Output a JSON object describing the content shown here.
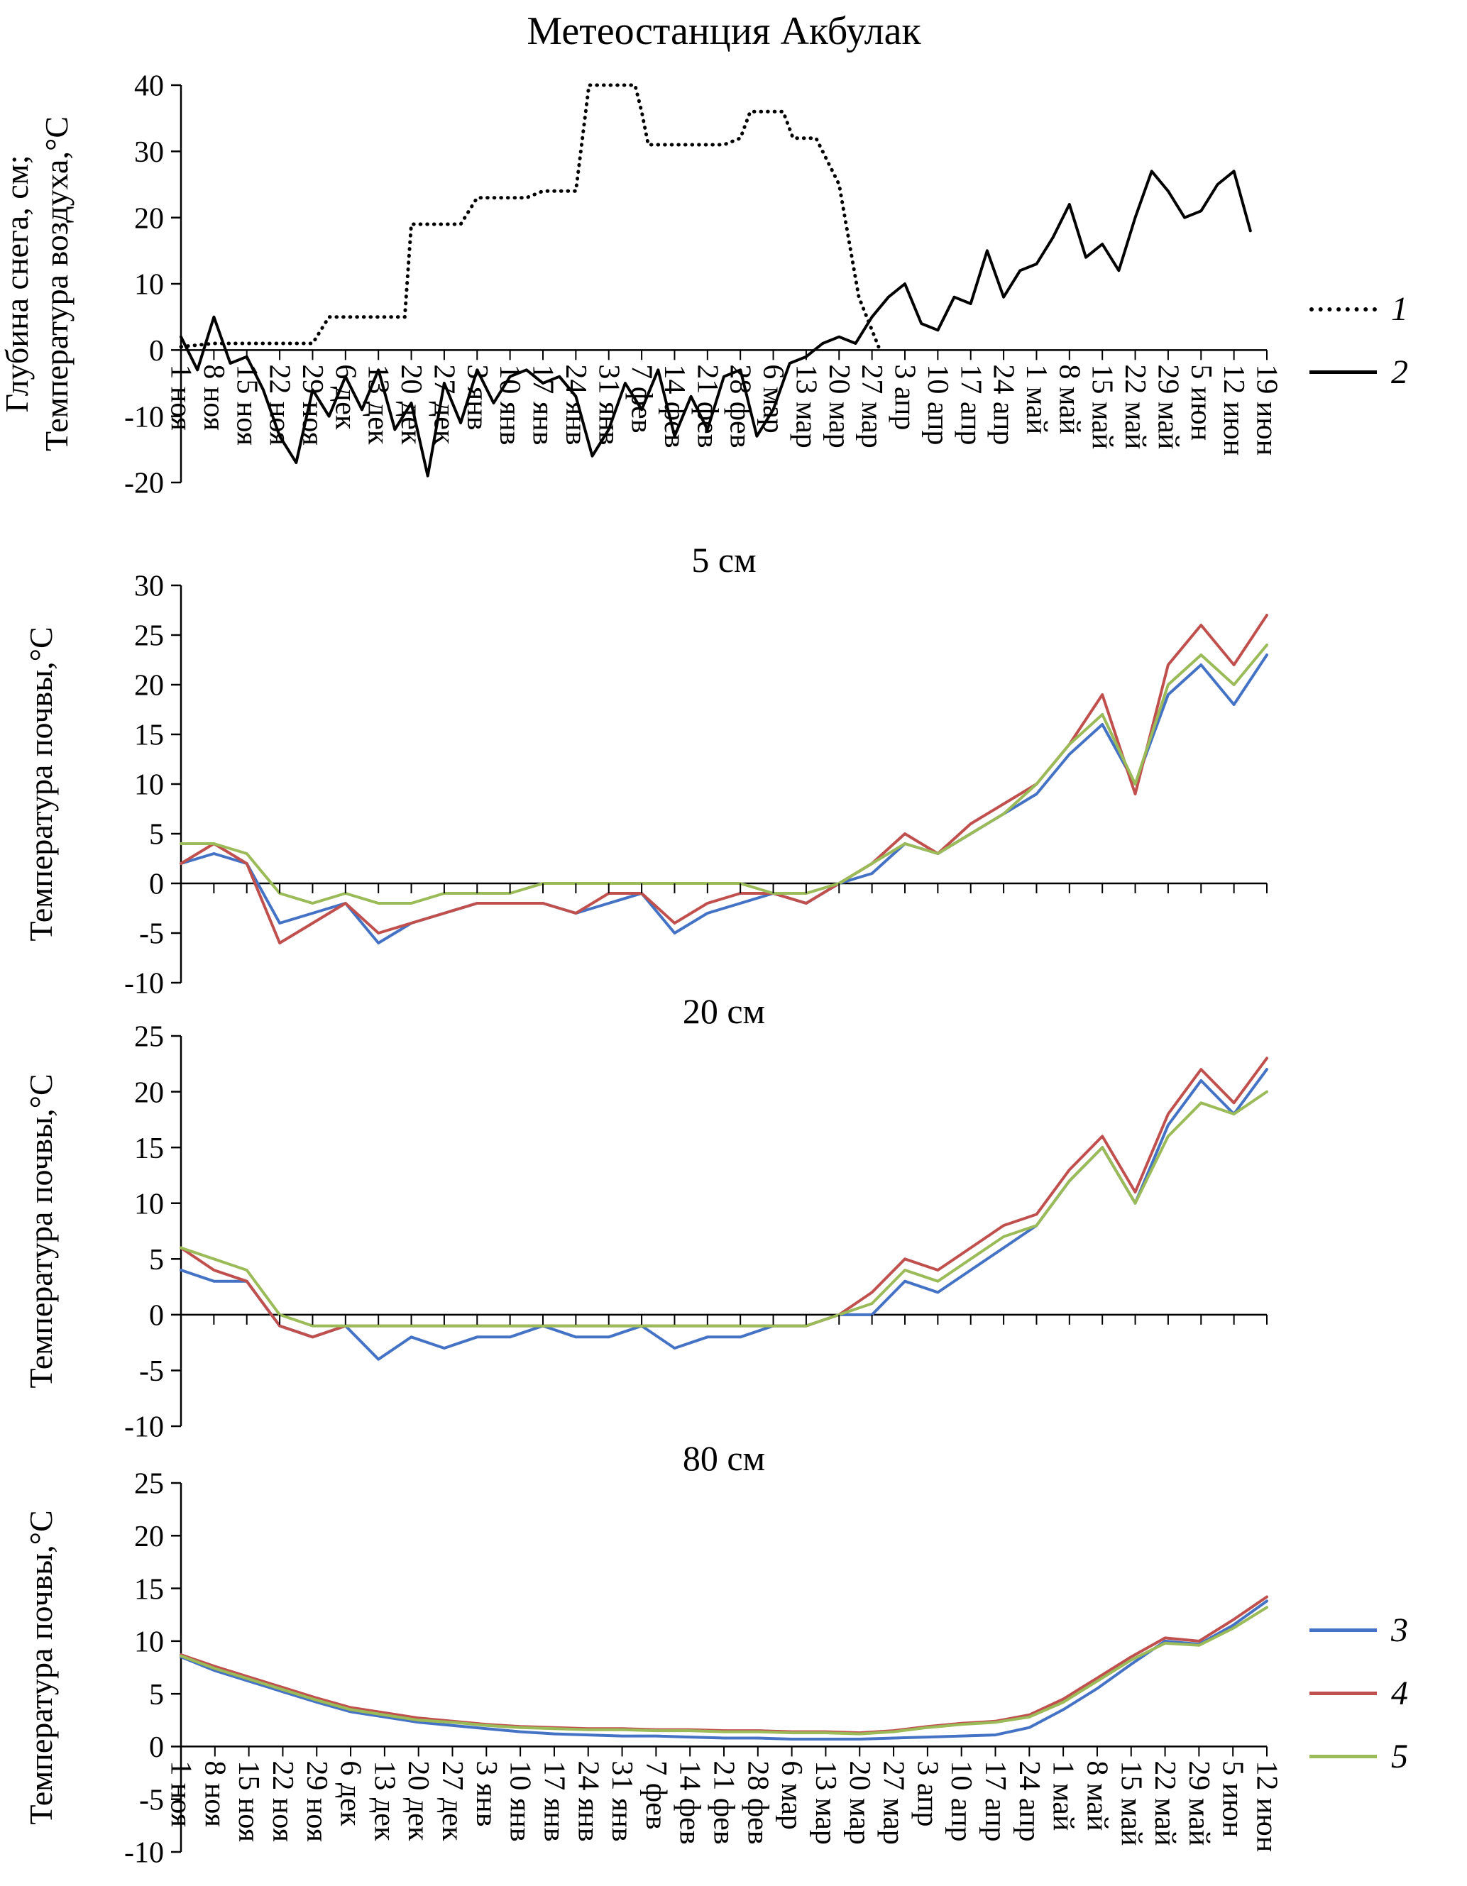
{
  "title": "Метеостанция Акбулак",
  "colors": {
    "blue": "#4472C4",
    "red": "#C0504D",
    "green": "#9BBB59",
    "black": "#000000"
  },
  "chart_data": [
    {
      "type": "line",
      "title": "Метеостанция Акбулак",
      "ylabel_lines": [
        "Глубина снега, см;",
        "Температура воздуха,°C"
      ],
      "ylim": [
        -20,
        40
      ],
      "ystep": 10,
      "grid": false,
      "legend_position": "right",
      "legend": [
        "1",
        "2"
      ],
      "categories": [
        "1 ноя",
        "8 ноя",
        "15 ноя",
        "22 ноя",
        "29 ноя",
        "6 дек",
        "13 дек",
        "20 дек",
        "27 дек",
        "3 янв",
        "10 янв",
        "17 янв",
        "24 янв",
        "31 янв",
        "7 фев",
        "14 фев",
        "21 фев",
        "28 фев",
        "6 мар",
        "13 мар",
        "20 мар",
        "27 мар",
        "3 апр",
        "10 апр",
        "17 апр",
        "24 апр",
        "1 май",
        "8 май",
        "15 май",
        "22 май",
        "29 май",
        "5 июн",
        "12 июн",
        "19 июн"
      ],
      "series": [
        {
          "name": "1",
          "color": "#000000",
          "style": "dotted",
          "x": [
            0,
            1,
            2,
            3,
            4,
            4.5,
            5,
            6.8,
            7,
            8.5,
            9,
            10.5,
            11,
            12,
            12.4,
            13.8,
            14,
            14.2,
            15,
            16.5,
            17,
            17.3,
            18.3,
            18.6,
            19.3,
            20,
            20.6,
            21.2
          ],
          "values": [
            0.5,
            1,
            1,
            1,
            1,
            5,
            5,
            5,
            19,
            19,
            23,
            23,
            24,
            24,
            40,
            40,
            36,
            31,
            31,
            31,
            32,
            36,
            36,
            32,
            32,
            25,
            8,
            0.5
          ]
        },
        {
          "name": "2",
          "color": "#000000",
          "style": "solid",
          "x_step": 0.5,
          "values": [
            2,
            -3,
            5,
            -2,
            -1,
            -6,
            -13,
            -17,
            -6,
            -10,
            -4,
            -9,
            -3,
            -12,
            -8,
            -19,
            -5,
            -11,
            -3,
            -8,
            -4,
            -3,
            -5,
            -4,
            -7,
            -16,
            -12,
            -5,
            -9,
            -3,
            -13,
            -7,
            -12,
            -4,
            -3,
            -13,
            -9,
            -2,
            -1,
            1,
            2,
            1,
            5,
            8,
            10,
            4,
            3,
            8,
            7,
            15,
            8,
            12,
            13,
            17,
            22,
            14,
            16,
            12,
            20,
            27,
            24,
            20,
            21,
            25,
            27,
            18
          ]
        }
      ]
    },
    {
      "type": "line",
      "subtitle": "5 см",
      "ylabel": "Температура почвы,°C",
      "ylim": [
        -10,
        30
      ],
      "ystep": 5,
      "grid": false,
      "n_ticks": 34,
      "series": [
        {
          "name": "3",
          "color": "#4472C4",
          "style": "solid",
          "values": [
            2,
            3,
            2,
            -4,
            -3,
            -2,
            -6,
            -4,
            -3,
            -2,
            -2,
            -2,
            -3,
            -2,
            -1,
            -5,
            -3,
            -2,
            -1,
            -2,
            0,
            1,
            4,
            3,
            5,
            7,
            9,
            13,
            16,
            10,
            19,
            22,
            18,
            23
          ]
        },
        {
          "name": "4",
          "color": "#C0504D",
          "style": "solid",
          "values": [
            2,
            4,
            2,
            -6,
            -4,
            -2,
            -5,
            -4,
            -3,
            -2,
            -2,
            -2,
            -3,
            -1,
            -1,
            -4,
            -2,
            -1,
            -1,
            -2,
            0,
            2,
            5,
            3,
            6,
            8,
            10,
            14,
            19,
            9,
            22,
            26,
            22,
            27
          ]
        },
        {
          "name": "5",
          "color": "#9BBB59",
          "style": "solid",
          "values": [
            4,
            4,
            3,
            -1,
            -2,
            -1,
            -2,
            -2,
            -1,
            -1,
            -1,
            0,
            0,
            0,
            0,
            0,
            0,
            0,
            -1,
            -1,
            0,
            2,
            4,
            3,
            5,
            7,
            10,
            14,
            17,
            10,
            20,
            23,
            20,
            24
          ]
        }
      ]
    },
    {
      "type": "line",
      "subtitle": "20 см",
      "ylabel": "Температура почвы,°C",
      "ylim": [
        -10,
        25
      ],
      "ystep": 5,
      "grid": false,
      "n_ticks": 34,
      "series": [
        {
          "name": "3",
          "color": "#4472C4",
          "style": "solid",
          "values": [
            4,
            3,
            3,
            -1,
            -2,
            -1,
            -4,
            -2,
            -3,
            -2,
            -2,
            -1,
            -2,
            -2,
            -1,
            -3,
            -2,
            -2,
            -1,
            -1,
            0,
            0,
            3,
            2,
            4,
            6,
            8,
            12,
            15,
            10,
            17,
            21,
            18,
            22
          ]
        },
        {
          "name": "4",
          "color": "#C0504D",
          "style": "solid",
          "values": [
            6,
            4,
            3,
            -1,
            -2,
            -1,
            -1,
            -1,
            -1,
            -1,
            -1,
            -1,
            -1,
            -1,
            -1,
            -1,
            -1,
            -1,
            -1,
            -1,
            0,
            2,
            5,
            4,
            6,
            8,
            9,
            13,
            16,
            11,
            18,
            22,
            19,
            23
          ]
        },
        {
          "name": "5",
          "color": "#9BBB59",
          "style": "solid",
          "values": [
            6,
            5,
            4,
            0,
            -1,
            -1,
            -1,
            -1,
            -1,
            -1,
            -1,
            -1,
            -1,
            -1,
            -1,
            -1,
            -1,
            -1,
            -1,
            -1,
            0,
            1,
            4,
            3,
            5,
            7,
            8,
            12,
            15,
            10,
            16,
            19,
            18,
            20
          ]
        }
      ]
    },
    {
      "type": "line",
      "subtitle": "80 см",
      "ylabel": "Температура почвы,°C",
      "ylim": [
        -10,
        25
      ],
      "ystep": 5,
      "grid": false,
      "legend_position": "right",
      "legend": [
        "3",
        "4",
        "5"
      ],
      "categories": [
        "1 ноя",
        "8 ноя",
        "15 ноя",
        "22 ноя",
        "29 ноя",
        "6 дек",
        "13 дек",
        "20 дек",
        "27 дек",
        "3 янв",
        "10 янв",
        "17 янв",
        "24 янв",
        "31 янв",
        "7 фев",
        "14 фев",
        "21 фев",
        "28 фев",
        "6 мар",
        "13 мар",
        "20 мар",
        "27 мар",
        "3 апр",
        "10 апр",
        "17 апр",
        "24 апр",
        "1 май",
        "8 май",
        "15 май",
        "22 май",
        "29 май",
        "5 июн",
        "12 июн"
      ],
      "series": [
        {
          "name": "3",
          "color": "#4472C4",
          "style": "solid",
          "values": [
            8.5,
            7.2,
            6.2,
            5.2,
            4.2,
            3.3,
            2.8,
            2.3,
            2,
            1.7,
            1.4,
            1.2,
            1.1,
            1,
            1,
            0.9,
            0.8,
            0.8,
            0.7,
            0.7,
            0.7,
            0.8,
            0.9,
            1,
            1.1,
            1.8,
            3.5,
            5.5,
            7.8,
            10,
            9.7,
            11.5,
            13.8
          ]
        },
        {
          "name": "4",
          "color": "#C0504D",
          "style": "solid",
          "values": [
            8.7,
            7.6,
            6.6,
            5.6,
            4.6,
            3.7,
            3.2,
            2.7,
            2.4,
            2.1,
            1.9,
            1.8,
            1.7,
            1.7,
            1.6,
            1.6,
            1.5,
            1.5,
            1.4,
            1.4,
            1.3,
            1.5,
            1.9,
            2.2,
            2.4,
            3,
            4.5,
            6.5,
            8.5,
            10.3,
            10,
            12,
            14.2
          ]
        },
        {
          "name": "5",
          "color": "#9BBB59",
          "style": "solid",
          "values": [
            8.6,
            7.4,
            6.4,
            5.4,
            4.4,
            3.5,
            3,
            2.5,
            2.3,
            2,
            1.8,
            1.7,
            1.6,
            1.6,
            1.5,
            1.5,
            1.4,
            1.4,
            1.3,
            1.3,
            1.2,
            1.4,
            1.8,
            2.1,
            2.3,
            2.8,
            4.2,
            6.2,
            8.2,
            9.8,
            9.6,
            11.2,
            13.2
          ]
        }
      ]
    }
  ]
}
